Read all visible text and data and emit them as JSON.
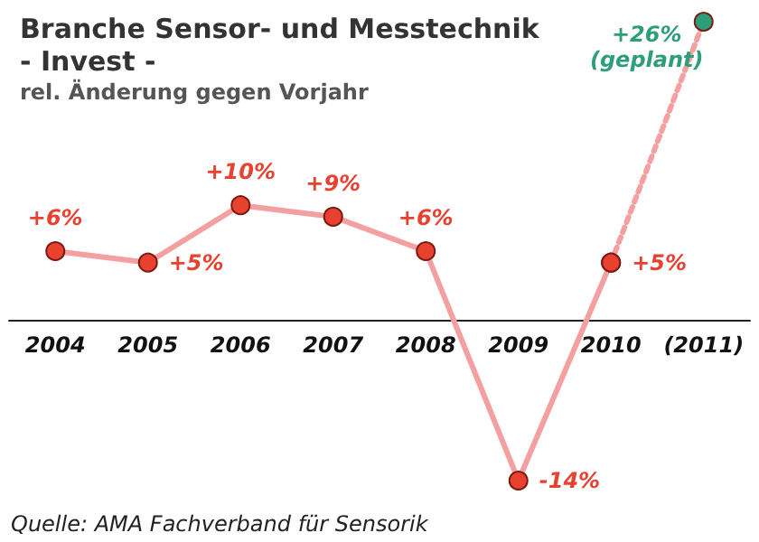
{
  "chart_data": {
    "type": "line",
    "title": "Branche Sensor- und Messtechnik\n- Invest -",
    "subtitle": "rel. Änderung gegen Vorjahr",
    "categories": [
      "2004",
      "2005",
      "2006",
      "2007",
      "2008",
      "2009",
      "2010",
      "(2011)"
    ],
    "series": [
      {
        "color": "#f4a0a0",
        "colors": [
          "#e8412f",
          "#e8412f",
          "#e8412f",
          "#e8412f",
          "#e8412f",
          "#e8412f",
          "#e8412f",
          null
        ],
        "values": [
          6,
          5,
          10,
          9,
          6,
          -14,
          5,
          null
        ],
        "value_labels": [
          "+6%",
          "+5%",
          "+10%",
          "+9%",
          "+6%",
          "-14%",
          "+5%",
          null
        ]
      },
      {
        "color": "#f4a0a0",
        "line_style": "dotted",
        "colors": [
          null,
          null,
          null,
          null,
          null,
          null,
          "#e8412f",
          "#2e9e7a"
        ],
        "values": [
          null,
          null,
          null,
          null,
          null,
          null,
          5,
          26
        ],
        "value_labels": [
          null,
          null,
          null,
          null,
          null,
          null,
          null,
          "+26%\n(geplant)"
        ]
      }
    ],
    "marker": "circle",
    "grid": false,
    "annotations": [
      "Quelle: AMA Fachverband für Sensorik"
    ]
  }
}
